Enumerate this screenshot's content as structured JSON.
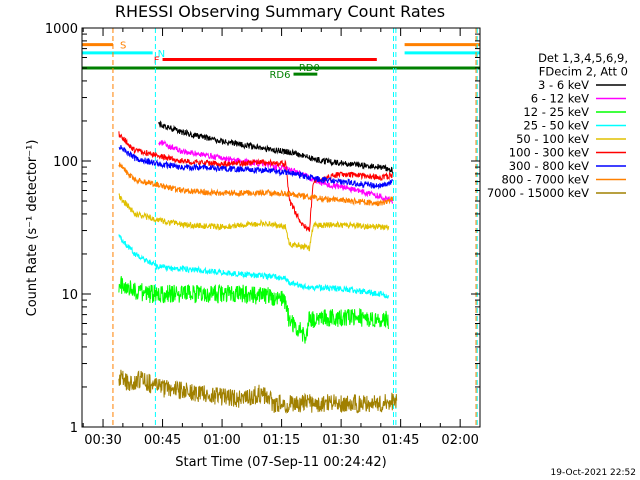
{
  "chart_data": {
    "type": "line",
    "title": "RHESSI Observing Summary Count Rates",
    "xlabel": "Start Time (07-Sep-11 00:24:42)",
    "ylabel": "Count Rate (s⁻¹ detector⁻¹)",
    "x_unit": "minutes after 00:00",
    "xlim": [
      24.7,
      125
    ],
    "ylim": [
      1,
      1000
    ],
    "yscale": "log",
    "xticks": [
      {
        "value": 30,
        "label": "00:30"
      },
      {
        "value": 45,
        "label": "00:45"
      },
      {
        "value": 60,
        "label": "01:00"
      },
      {
        "value": 75,
        "label": "01:15"
      },
      {
        "value": 90,
        "label": "01:30"
      },
      {
        "value": 105,
        "label": "01:45"
      },
      {
        "value": 120,
        "label": "02:00"
      }
    ],
    "yticks": [
      {
        "value": 1,
        "label": "1"
      },
      {
        "value": 10,
        "label": "10"
      },
      {
        "value": 100,
        "label": "100"
      },
      {
        "value": 1000,
        "label": "1000"
      }
    ],
    "legend_header": [
      "Det 1,3,4,5,6,9,",
      "FDecim 2, Att 0"
    ],
    "legend_position": "right",
    "series": [
      {
        "name": "3 - 6 keV",
        "color": "#000000",
        "points": [
          [
            44,
            190
          ],
          [
            50,
            165
          ],
          [
            60,
            140
          ],
          [
            70,
            125
          ],
          [
            78,
            115
          ],
          [
            85,
            100
          ],
          [
            92,
            95
          ],
          [
            100,
            90
          ],
          [
            103,
            85
          ]
        ]
      },
      {
        "name": "6 - 12 keV",
        "color": "#ff00ff",
        "points": [
          [
            44,
            140
          ],
          [
            50,
            118
          ],
          [
            60,
            105
          ],
          [
            70,
            95
          ],
          [
            78,
            85
          ],
          [
            85,
            68
          ],
          [
            92,
            62
          ],
          [
            100,
            54
          ],
          [
            103,
            50
          ]
        ]
      },
      {
        "name": "12 - 25 keV",
        "color": "#00ff00",
        "points": [
          [
            34,
            12
          ],
          [
            38,
            10.5
          ],
          [
            42,
            10
          ],
          [
            45,
            10
          ],
          [
            55,
            10
          ],
          [
            65,
            10
          ],
          [
            73,
            9.5
          ],
          [
            76,
            8.8
          ],
          [
            77,
            6.2
          ],
          [
            80,
            5.4
          ],
          [
            81,
            4.5
          ],
          [
            82,
            6.5
          ],
          [
            90,
            6.6
          ],
          [
            100,
            6.5
          ],
          [
            102,
            6.3
          ]
        ]
      },
      {
        "name": "25 - 50 keV",
        "color": "#00ffff",
        "points": [
          [
            34,
            27
          ],
          [
            38,
            20
          ],
          [
            42,
            17
          ],
          [
            44,
            16
          ],
          [
            55,
            15
          ],
          [
            65,
            14
          ],
          [
            73,
            13.5
          ],
          [
            76,
            13
          ],
          [
            77,
            12.2
          ],
          [
            82,
            11.2
          ],
          [
            90,
            11
          ],
          [
            100,
            10
          ],
          [
            102,
            9.5
          ]
        ]
      },
      {
        "name": "50 - 100 keV",
        "color": "#e0c000",
        "points": [
          [
            34,
            55
          ],
          [
            38,
            40
          ],
          [
            44,
            36
          ],
          [
            50,
            33
          ],
          [
            60,
            32
          ],
          [
            70,
            34
          ],
          [
            76,
            32
          ],
          [
            77,
            24
          ],
          [
            82,
            22
          ],
          [
            83,
            33
          ],
          [
            90,
            33
          ],
          [
            100,
            32
          ],
          [
            102,
            32
          ]
        ]
      },
      {
        "name": "100 - 300 keV",
        "color": "#ff0000",
        "points": [
          [
            34,
            160
          ],
          [
            38,
            120
          ],
          [
            44,
            110
          ],
          [
            50,
            100
          ],
          [
            60,
            95
          ],
          [
            70,
            98
          ],
          [
            76,
            95
          ],
          [
            77,
            50
          ],
          [
            80,
            34
          ],
          [
            82,
            30
          ],
          [
            83,
            70
          ],
          [
            90,
            80
          ],
          [
            100,
            75
          ],
          [
            103,
            78
          ]
        ]
      },
      {
        "name": "300 - 800 keV",
        "color": "#0000ff",
        "points": [
          [
            34,
            130
          ],
          [
            38,
            105
          ],
          [
            44,
            95
          ],
          [
            50,
            90
          ],
          [
            60,
            88
          ],
          [
            70,
            85
          ],
          [
            76,
            82
          ],
          [
            80,
            78
          ],
          [
            85,
            72
          ],
          [
            90,
            70
          ],
          [
            100,
            65
          ],
          [
            103,
            70
          ]
        ]
      },
      {
        "name": "800 - 7000 keV",
        "color": "#ff8000",
        "points": [
          [
            34,
            95
          ],
          [
            38,
            72
          ],
          [
            44,
            66
          ],
          [
            50,
            60
          ],
          [
            60,
            57
          ],
          [
            70,
            58
          ],
          [
            78,
            56
          ],
          [
            85,
            52
          ],
          [
            92,
            50
          ],
          [
            100,
            48
          ],
          [
            103,
            52
          ]
        ]
      },
      {
        "name": "7000 - 15000 keV",
        "color": "#a08000",
        "points": [
          [
            34,
            2.4
          ],
          [
            37,
            2.1
          ],
          [
            40,
            2.3
          ],
          [
            43,
            2.0
          ],
          [
            65,
            1.6
          ],
          [
            70,
            1.8
          ],
          [
            73,
            1.5
          ],
          [
            101,
            1.5
          ],
          [
            104,
            1.6
          ]
        ]
      }
    ],
    "flags": [
      {
        "label": "S",
        "color": "#ff8000",
        "segments": [
          [
            24.7,
            32.5
          ],
          [
            106,
            125
          ]
        ],
        "level": 750
      },
      {
        "label": "N",
        "color": "#00ffff",
        "segments": [
          [
            24.7,
            42.5
          ],
          [
            106,
            125
          ]
        ],
        "level": 650
      },
      {
        "label": "F",
        "color": "#ff0000",
        "segments": [
          [
            45,
            99
          ]
        ],
        "level": 580
      },
      {
        "label": "RD0",
        "color": "#008000",
        "segments": [
          [
            24.7,
            125
          ]
        ],
        "level": 500
      },
      {
        "label": "RD6",
        "color": "#008000",
        "segments": [
          [
            78,
            84
          ]
        ],
        "level": 450
      }
    ],
    "vlines": [
      {
        "x": 32.5,
        "color": "#ff8000"
      },
      {
        "x": 43.2,
        "color": "#00ffff"
      },
      {
        "x": 103.2,
        "color": "#00ffff"
      },
      {
        "x": 103.8,
        "color": "#00ffff"
      },
      {
        "x": 124,
        "color": "#ff8000"
      },
      {
        "x": 124.3,
        "color": "#00ffff"
      }
    ],
    "footer_stamp": "19-Oct-2021 22:52"
  }
}
